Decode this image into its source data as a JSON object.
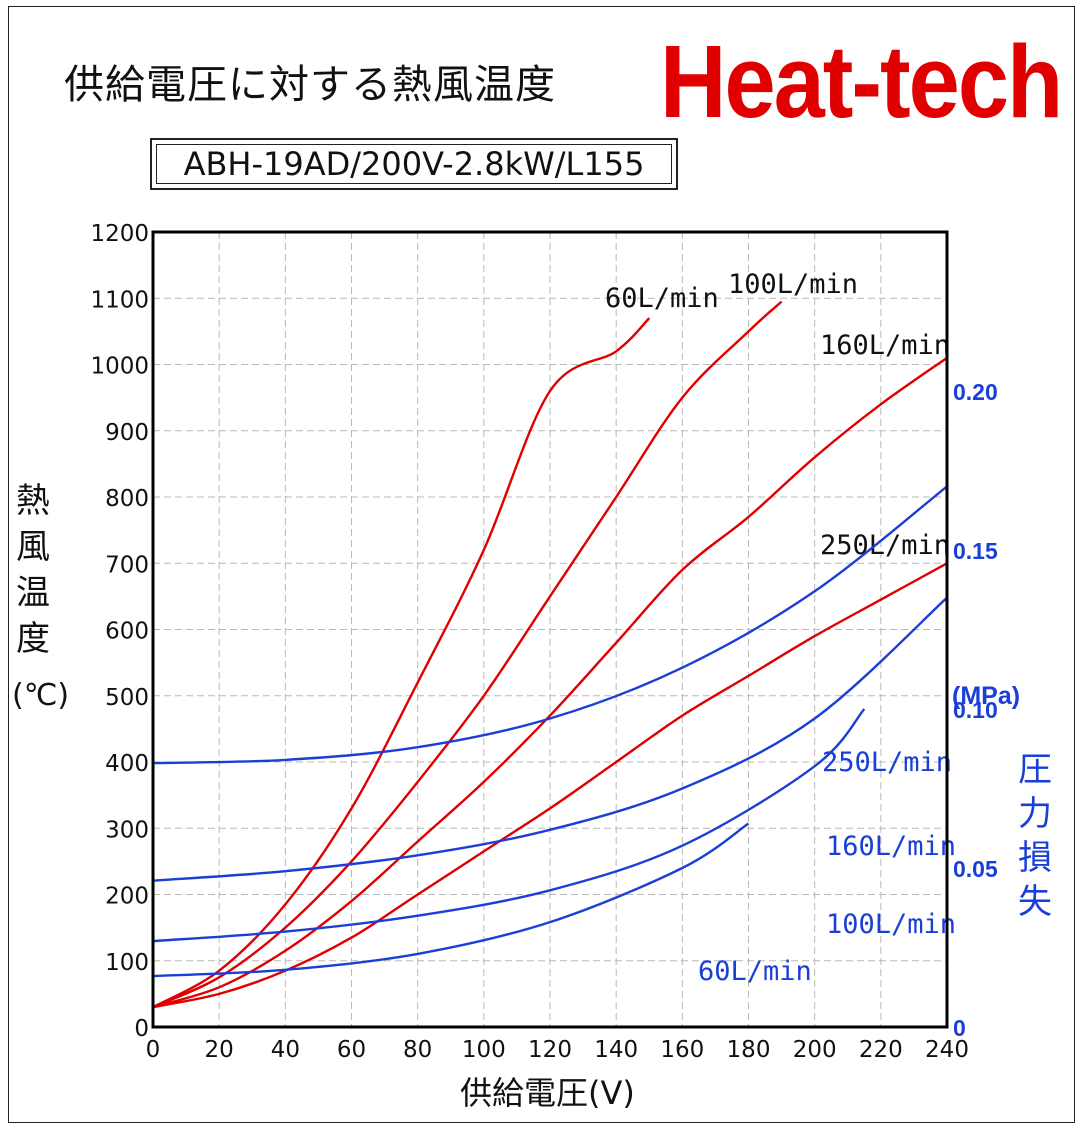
{
  "header": {
    "title": "供給電圧に対する熱風温度",
    "brand": "Heat-tech",
    "model": "ABH-19AD/200V-2.8kW/L155"
  },
  "axes": {
    "ylabel_chars": [
      "熱",
      "風",
      "温",
      "度"
    ],
    "yunit": "(℃)",
    "y2unit": "(MPa)",
    "y2label_chars": [
      "圧",
      "力",
      "損",
      "失"
    ],
    "xlabel": "供給電圧(V)"
  },
  "colors": {
    "temperature": "#e00000",
    "pressure": "#1a3fd6",
    "grid": "#b8b8b8"
  },
  "chart_data": {
    "type": "line",
    "x": [
      0,
      20,
      40,
      60,
      80,
      100,
      120,
      140,
      160,
      180,
      200,
      220,
      240
    ],
    "xlim": [
      0,
      240
    ],
    "ylim": [
      0,
      1200
    ],
    "y2lim": [
      0,
      0.25
    ],
    "x_ticks": [
      "0",
      "20",
      "40",
      "60",
      "80",
      "100",
      "120",
      "140",
      "160",
      "180",
      "200",
      "220",
      "240"
    ],
    "y_ticks": [
      "0",
      "100",
      "200",
      "300",
      "400",
      "500",
      "600",
      "700",
      "800",
      "900",
      "1000",
      "1100",
      "1200"
    ],
    "y2_ticks": [
      "0",
      "0.05",
      "0.10",
      "0.15",
      "0.20"
    ],
    "grid": true,
    "temperature_series": [
      {
        "name": "60L/min",
        "x": [
          0,
          20,
          40,
          60,
          80,
          100,
          120,
          140,
          150
        ],
        "values": [
          30,
          85,
          185,
          330,
          520,
          720,
          960,
          1020,
          1070
        ]
      },
      {
        "name": "100L/min",
        "x": [
          0,
          20,
          40,
          60,
          80,
          100,
          120,
          140,
          160,
          180,
          190
        ],
        "values": [
          30,
          75,
          150,
          250,
          370,
          500,
          650,
          800,
          950,
          1050,
          1095
        ]
      },
      {
        "name": "160L/min",
        "x": [
          0,
          20,
          40,
          60,
          80,
          100,
          120,
          140,
          160,
          180,
          200,
          220,
          240
        ],
        "values": [
          30,
          60,
          115,
          190,
          280,
          370,
          470,
          580,
          690,
          770,
          860,
          940,
          1010
        ]
      },
      {
        "name": "250L/min",
        "x": [
          0,
          20,
          40,
          60,
          80,
          100,
          120,
          140,
          160,
          180,
          200,
          220,
          240
        ],
        "values": [
          30,
          50,
          85,
          135,
          200,
          265,
          330,
          400,
          470,
          530,
          590,
          645,
          700
        ]
      }
    ],
    "pressure_series": [
      {
        "name": "250L/min",
        "x": [
          0,
          40,
          80,
          120,
          160,
          200,
          240
        ],
        "values": [
          0.083,
          0.084,
          0.088,
          0.097,
          0.113,
          0.137,
          0.17
        ]
      },
      {
        "name": "160L/min",
        "x": [
          0,
          40,
          80,
          120,
          160,
          200,
          240
        ],
        "values": [
          0.046,
          0.049,
          0.054,
          0.062,
          0.075,
          0.097,
          0.135
        ]
      },
      {
        "name": "100L/min",
        "x": [
          0,
          40,
          80,
          120,
          160,
          200,
          215
        ],
        "values": [
          0.027,
          0.03,
          0.035,
          0.043,
          0.057,
          0.082,
          0.1
        ]
      },
      {
        "name": "60L/min",
        "x": [
          0,
          40,
          80,
          120,
          160,
          180
        ],
        "values": [
          0.016,
          0.018,
          0.023,
          0.033,
          0.05,
          0.064
        ]
      }
    ]
  }
}
